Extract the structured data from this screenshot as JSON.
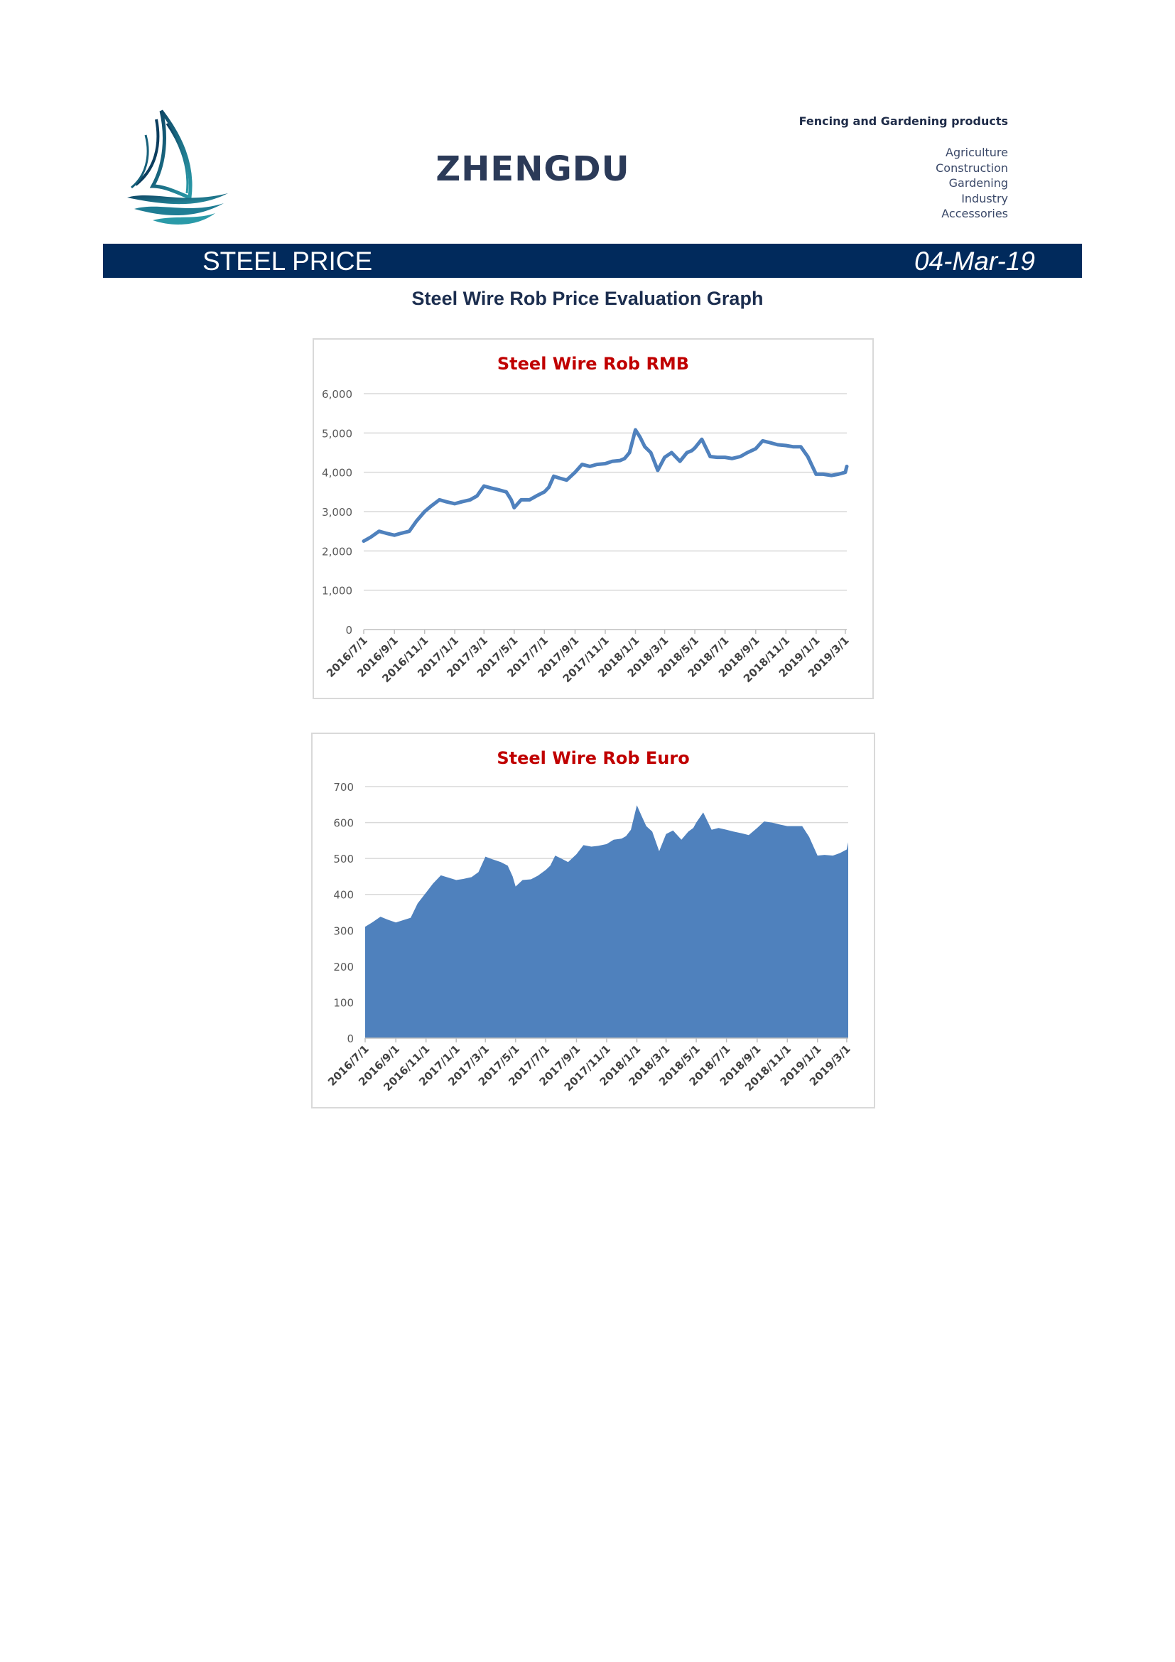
{
  "header": {
    "brand": "ZHENGDU",
    "tagline": "Fencing and Gardening products",
    "categories": [
      "Agriculture",
      "Construction",
      "Gardening",
      "Industry",
      "Accessories"
    ]
  },
  "banner": {
    "title": "STEEL PRICE",
    "date": "04-Mar-19"
  },
  "graph_heading": "Steel Wire Rob Price Evaluation Graph",
  "icons": {
    "logo": "sailboat-logo-icon"
  },
  "colors": {
    "banner": "#012a5c",
    "series": "#4f81bd",
    "chart_title": "#c00000",
    "brand": "#2b3a58"
  },
  "chart_data": [
    {
      "type": "line",
      "title": "Steel Wire Rob RMB",
      "xlabel": "",
      "ylabel": "",
      "ylim": [
        0,
        6000
      ],
      "yticks": [
        "0",
        "1,000",
        "2,000",
        "3,000",
        "4,000",
        "5,000",
        "6,000"
      ],
      "x_tick_labels": [
        "2016/7/1",
        "2016/9/1",
        "2016/11/1",
        "2017/1/1",
        "2017/3/1",
        "2017/5/1",
        "2017/7/1",
        "2017/9/1",
        "2017/11/1",
        "2018/1/1",
        "2018/3/1",
        "2018/5/1",
        "2018/7/1",
        "2018/9/1",
        "2018/11/1",
        "2019/1/1",
        "2019/3/1"
      ],
      "grid": true,
      "legend": "none",
      "x": [
        "2016/7/1",
        "2016/7/15",
        "2016/8/1",
        "2016/8/15",
        "2016/9/1",
        "2016/9/15",
        "2016/10/1",
        "2016/10/15",
        "2016/11/1",
        "2016/11/15",
        "2016/12/1",
        "2016/12/15",
        "2017/1/1",
        "2017/1/15",
        "2017/2/1",
        "2017/2/15",
        "2017/3/1",
        "2017/3/15",
        "2017/4/1",
        "2017/4/15",
        "2017/4/25",
        "2017/5/1",
        "2017/5/15",
        "2017/6/1",
        "2017/6/15",
        "2017/7/1",
        "2017/7/10",
        "2017/7/20",
        "2017/8/1",
        "2017/8/15",
        "2017/9/1",
        "2017/9/15",
        "2017/10/1",
        "2017/10/15",
        "2017/11/1",
        "2017/11/15",
        "2017/12/1",
        "2017/12/10",
        "2017/12/20",
        "2018/1/1",
        "2018/1/10",
        "2018/1/20",
        "2018/2/1",
        "2018/2/15",
        "2018/3/1",
        "2018/3/15",
        "2018/4/1",
        "2018/4/15",
        "2018/4/25",
        "2018/5/1",
        "2018/5/15",
        "2018/6/1",
        "2018/6/15",
        "2018/7/1",
        "2018/7/15",
        "2018/8/1",
        "2018/8/15",
        "2018/9/1",
        "2018/9/15",
        "2018/10/1",
        "2018/10/15",
        "2018/11/1",
        "2018/11/15",
        "2018/12/1",
        "2018/12/15",
        "2019/1/1",
        "2019/1/15",
        "2019/2/1",
        "2019/2/15",
        "2019/3/1",
        "2019/3/4"
      ],
      "values": [
        2250,
        2350,
        2500,
        2450,
        2400,
        2450,
        2500,
        2750,
        3000,
        3150,
        3300,
        3250,
        3200,
        3250,
        3300,
        3400,
        3650,
        3600,
        3550,
        3500,
        3300,
        3100,
        3300,
        3300,
        3400,
        3500,
        3620,
        3900,
        3850,
        3800,
        4000,
        4200,
        4150,
        4200,
        4220,
        4280,
        4300,
        4350,
        4500,
        5080,
        4900,
        4650,
        4500,
        4050,
        4380,
        4500,
        4280,
        4500,
        4550,
        4620,
        4840,
        4400,
        4380,
        4380,
        4350,
        4400,
        4500,
        4600,
        4800,
        4750,
        4700,
        4680,
        4650,
        4650,
        4400,
        3950,
        3950,
        3920,
        3950,
        4000,
        4150
      ]
    },
    {
      "type": "area",
      "title": "Steel Wire Rob Euro",
      "xlabel": "",
      "ylabel": "",
      "ylim": [
        0,
        700
      ],
      "yticks": [
        "0",
        "100",
        "200",
        "300",
        "400",
        "500",
        "600",
        "700"
      ],
      "x_tick_labels": [
        "2016/7/1",
        "2016/9/1",
        "2016/11/1",
        "2017/1/1",
        "2017/3/1",
        "2017/5/1",
        "2017/7/1",
        "2017/9/1",
        "2017/11/1",
        "2018/1/1",
        "2018/3/1",
        "2018/5/1",
        "2018/7/1",
        "2018/9/1",
        "2018/11/1",
        "2019/1/1",
        "2019/3/1"
      ],
      "grid": true,
      "legend": "none",
      "x": [
        "2016/7/1",
        "2016/7/15",
        "2016/8/1",
        "2016/8/15",
        "2016/9/1",
        "2016/9/15",
        "2016/10/1",
        "2016/10/15",
        "2016/11/1",
        "2016/11/15",
        "2016/12/1",
        "2016/12/15",
        "2017/1/1",
        "2017/1/15",
        "2017/2/1",
        "2017/2/15",
        "2017/3/1",
        "2017/3/15",
        "2017/4/1",
        "2017/4/15",
        "2017/4/25",
        "2017/5/1",
        "2017/5/15",
        "2017/6/1",
        "2017/6/15",
        "2017/7/1",
        "2017/7/10",
        "2017/7/20",
        "2017/8/1",
        "2017/8/15",
        "2017/9/1",
        "2017/9/15",
        "2017/10/1",
        "2017/10/15",
        "2017/11/1",
        "2017/11/15",
        "2017/12/1",
        "2017/12/10",
        "2017/12/20",
        "2018/1/1",
        "2018/1/10",
        "2018/1/20",
        "2018/2/1",
        "2018/2/15",
        "2018/3/1",
        "2018/3/15",
        "2018/4/1",
        "2018/4/15",
        "2018/4/25",
        "2018/5/1",
        "2018/5/15",
        "2018/6/1",
        "2018/6/15",
        "2018/7/1",
        "2018/7/15",
        "2018/8/1",
        "2018/8/15",
        "2018/9/1",
        "2018/9/15",
        "2018/10/1",
        "2018/10/15",
        "2018/11/1",
        "2018/11/15",
        "2018/12/1",
        "2018/12/15",
        "2019/1/1",
        "2019/1/15",
        "2019/2/1",
        "2019/2/15",
        "2019/3/1",
        "2019/3/4"
      ],
      "values": [
        310,
        322,
        338,
        330,
        322,
        328,
        335,
        375,
        405,
        430,
        453,
        447,
        440,
        443,
        448,
        462,
        505,
        498,
        490,
        480,
        450,
        422,
        440,
        442,
        452,
        468,
        480,
        508,
        500,
        490,
        512,
        537,
        533,
        535,
        540,
        552,
        555,
        562,
        580,
        648,
        620,
        590,
        575,
        520,
        568,
        578,
        552,
        575,
        585,
        600,
        628,
        580,
        585,
        580,
        575,
        570,
        565,
        585,
        603,
        600,
        595,
        590,
        590,
        590,
        560,
        508,
        510,
        508,
        515,
        525,
        545
      ]
    }
  ]
}
